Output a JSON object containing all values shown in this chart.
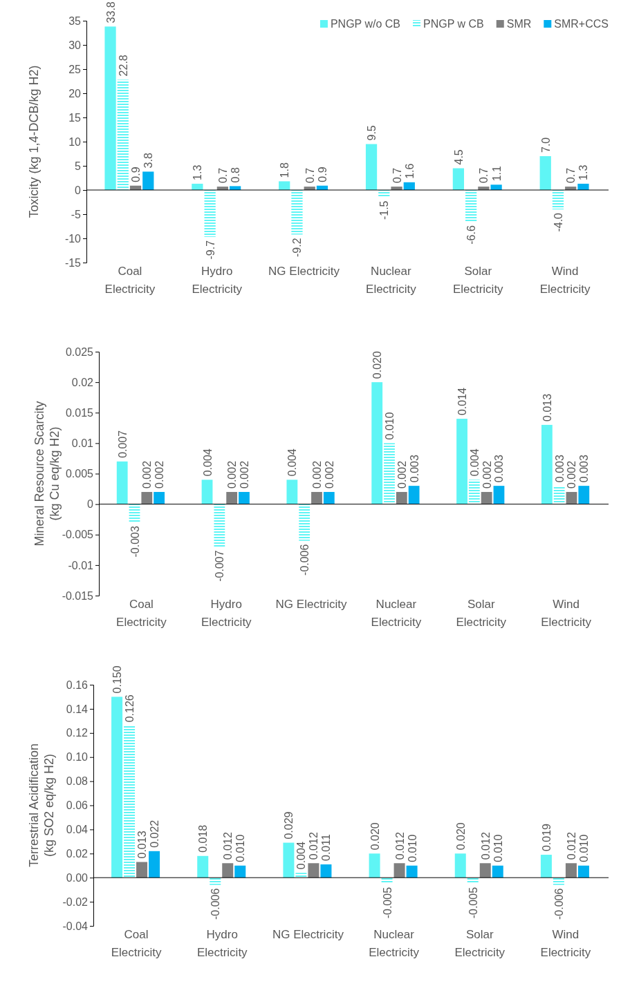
{
  "chart_data": [
    {
      "type": "bar",
      "ylabel": "Toxicity (kg 1,4-DCB/kg H2)",
      "categories": [
        "Coal Electricity",
        "Hydro Electricity",
        "NG Electricity",
        "Nuclear Electricity",
        "Solar Electricity",
        "Wind Electricity"
      ],
      "ylim": [
        -15,
        35
      ],
      "yticks": [
        -15,
        -10,
        -5,
        0,
        5,
        10,
        15,
        20,
        25,
        30,
        35
      ],
      "legend": "top right",
      "series": [
        {
          "name": "PNGP w/o CB",
          "color": "#5ff5f5",
          "values": [
            33.8,
            1.3,
            1.8,
            9.5,
            4.5,
            7.0
          ],
          "value_labels": [
            "33.8",
            "1.3",
            "1.8",
            "9.5",
            "4.5",
            "7.0"
          ]
        },
        {
          "name": "PNGP w CB",
          "color": "#5ff5f5",
          "line_style": "dashed",
          "values": [
            22.8,
            -9.7,
            -9.2,
            -1.5,
            -6.6,
            -4.0
          ],
          "value_labels": [
            "22.8",
            "-9.7",
            "-9.2",
            "-1.5",
            "-6.6",
            "-4.0"
          ]
        },
        {
          "name": "SMR",
          "color": "#7f7f7f",
          "values": [
            0.9,
            0.7,
            0.7,
            0.7,
            0.7,
            0.7
          ],
          "value_labels": [
            "0.9",
            "0.7",
            "0.7",
            "0.7",
            "0.7",
            "0.7"
          ]
        },
        {
          "name": "SMR+CCS",
          "color": "#00b0f0",
          "values": [
            3.8,
            0.8,
            0.9,
            1.6,
            1.1,
            1.3
          ],
          "value_labels": [
            "3.8",
            "0.8",
            "0.9",
            "1.6",
            "1.1",
            "1.3"
          ]
        }
      ]
    },
    {
      "type": "bar",
      "ylabel": "Mineral Resource Scarcity\n(kg Cu eq/kg H2)",
      "categories": [
        "Coal Electricity",
        "Hydro Electricity",
        "NG Electricity",
        "Nuclear Electricity",
        "Solar Electricity",
        "Wind Electricity"
      ],
      "ylim": [
        -0.015,
        0.025
      ],
      "yticks": [
        -0.015,
        -0.01,
        -0.005,
        0,
        0.005,
        0.01,
        0.015,
        0.02,
        0.025
      ],
      "series": [
        {
          "color": "#5ff5f5",
          "values": [
            0.007,
            0.004,
            0.004,
            0.02,
            0.014,
            0.013
          ],
          "value_labels": [
            "0.007",
            "0.004",
            "0.004",
            "0.020",
            "0.014",
            "0.013"
          ]
        },
        {
          "color": "#5ff5f5",
          "line_style": "dashed",
          "values": [
            -0.003,
            -0.007,
            -0.006,
            0.01,
            0.004,
            0.003
          ],
          "value_labels": [
            "-0.003",
            "-0.007",
            "-0.006",
            "0.010",
            "0.004",
            "0.003"
          ]
        },
        {
          "color": "#7f7f7f",
          "values": [
            0.002,
            0.002,
            0.002,
            0.002,
            0.002,
            0.002
          ],
          "value_labels": [
            "0.002",
            "0.002",
            "0.002",
            "0.002",
            "0.002",
            "0.002"
          ]
        },
        {
          "color": "#00b0f0",
          "values": [
            0.002,
            0.002,
            0.002,
            0.003,
            0.003,
            0.003
          ],
          "value_labels": [
            "0.002",
            "0.002",
            "0.002",
            "0.003",
            "0.003",
            "0.003"
          ]
        }
      ]
    },
    {
      "type": "bar",
      "ylabel": "Terrestrial Acidification\n(kg SO2 eq/kg H2)",
      "categories": [
        "Coal Electricity",
        "Hydro Electricity",
        "NG Electricity",
        "Nuclear Electricity",
        "Solar Electricity",
        "Wind Electricity"
      ],
      "ylim": [
        -0.04,
        0.16
      ],
      "yticks": [
        {
          "value": -0.04,
          "label": "-0.04"
        },
        {
          "value": -0.02,
          "label": "-0.02"
        },
        {
          "value": 0,
          "label": "0.00"
        },
        {
          "value": 0.02,
          "label": "0.02"
        },
        {
          "value": 0.04,
          "label": "0.04"
        },
        {
          "value": 0.06,
          "label": "0.06"
        },
        {
          "value": 0.08,
          "label": "0.08"
        },
        {
          "value": 0.1,
          "label": "0.10"
        },
        {
          "value": 0.12,
          "label": "0.12"
        },
        {
          "value": 0.14,
          "label": "0.14"
        },
        {
          "value": 0.16,
          "label": "0.16"
        }
      ],
      "series": [
        {
          "color": "#5ff5f5",
          "values": [
            0.15,
            0.018,
            0.029,
            0.02,
            0.02,
            0.019
          ],
          "value_labels": [
            "0.150",
            "0.018",
            "0.029",
            "0.020",
            "0.020",
            "0.019"
          ]
        },
        {
          "color": "#5ff5f5",
          "line_style": "dashed",
          "values": [
            0.126,
            -0.006,
            0.004,
            -0.005,
            -0.005,
            -0.006
          ],
          "value_labels": [
            "0.126",
            "-0.006",
            "0.004",
            "-0.005",
            "-0.005",
            "-0.006"
          ]
        },
        {
          "color": "#7f7f7f",
          "values": [
            0.013,
            0.012,
            0.012,
            0.012,
            0.012,
            0.012
          ],
          "value_labels": [
            "0.013",
            "0.012",
            "0.012",
            "0.012",
            "0.012",
            "0.012"
          ]
        },
        {
          "color": "#00b0f0",
          "values": [
            0.022,
            0.01,
            0.011,
            0.01,
            0.01,
            0.01
          ],
          "value_labels": [
            "0.022",
            "0.010",
            "0.011",
            "0.010",
            "0.010",
            "0.010"
          ]
        }
      ]
    }
  ]
}
